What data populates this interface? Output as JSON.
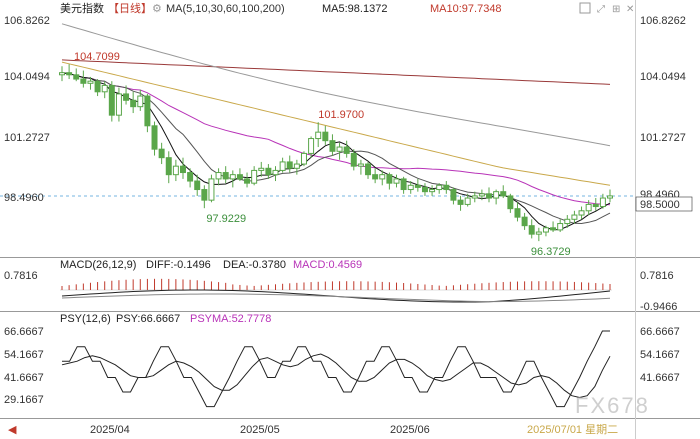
{
  "header": {
    "symbol": "美元指数",
    "period": "【日线】",
    "ma_title": "MA(5,10,30,60,100,200)",
    "ma5": "MA5:98.1372",
    "ma10": "MA10:97.7348"
  },
  "colors": {
    "background": "#ffffff",
    "up": "#5aa64a",
    "down": "#5aa64a",
    "ma5": "#111111",
    "ma10": "#555555",
    "ma30": "#b833b8",
    "ma60": "#c9a84a",
    "ma100": "#999999",
    "ma200": "#9a3a3a",
    "axis_text": "#333333",
    "label_red": "#c0392b",
    "label_green": "#3c8f3c",
    "last_price_bg": "#ffffff",
    "grid": "#e8e8e8"
  },
  "chart_data": [
    {
      "type": "candlestick",
      "name": "price",
      "y_ticks": [
        "106.8262",
        "104.0494",
        "101.2727",
        "98.4960"
      ],
      "ylim": [
        95.5,
        107.0
      ],
      "x_ticks": [
        "2025/04",
        "2025/05",
        "2025/06"
      ],
      "last_price": "98.5000",
      "current_line": "98.4960",
      "annotations": [
        {
          "text": "104.7099",
          "value": 104.7099,
          "color": "red"
        },
        {
          "text": "101.9700",
          "value": 101.97,
          "color": "red"
        },
        {
          "text": "97.9229",
          "value": 97.9229,
          "color": "green"
        },
        {
          "text": "96.3729",
          "value": 96.3729,
          "color": "green"
        }
      ],
      "ohlc": [
        [
          104.2,
          104.6,
          103.9,
          104.3
        ],
        [
          104.3,
          104.7,
          104.0,
          104.2
        ],
        [
          104.2,
          104.5,
          103.9,
          104.0
        ],
        [
          104.0,
          104.4,
          103.6,
          103.8
        ],
        [
          103.8,
          104.1,
          103.5,
          103.9
        ],
        [
          103.9,
          104.0,
          103.2,
          103.4
        ],
        [
          103.4,
          103.9,
          103.1,
          103.7
        ],
        [
          103.7,
          103.9,
          102.0,
          102.3
        ],
        [
          102.3,
          103.6,
          102.0,
          103.3
        ],
        [
          103.3,
          103.7,
          102.8,
          103.0
        ],
        [
          103.0,
          103.4,
          102.4,
          102.7
        ],
        [
          102.7,
          103.5,
          102.5,
          103.2
        ],
        [
          103.2,
          103.3,
          101.5,
          101.8
        ],
        [
          101.8,
          102.0,
          100.4,
          100.7
        ],
        [
          100.7,
          101.0,
          100.0,
          100.3
        ],
        [
          100.3,
          100.6,
          99.1,
          99.5
        ],
        [
          99.5,
          100.2,
          99.2,
          99.9
        ],
        [
          99.9,
          100.3,
          99.3,
          99.6
        ],
        [
          99.6,
          99.8,
          98.9,
          99.2
        ],
        [
          99.2,
          99.5,
          98.5,
          98.8
        ],
        [
          98.8,
          99.0,
          97.9229,
          98.3
        ],
        [
          98.3,
          99.5,
          98.2,
          99.3
        ],
        [
          99.3,
          99.8,
          99.0,
          99.6
        ],
        [
          99.6,
          99.9,
          99.1,
          99.3
        ],
        [
          99.3,
          99.7,
          98.9,
          99.5
        ],
        [
          99.5,
          99.8,
          99.2,
          99.3
        ],
        [
          99.3,
          99.6,
          98.9,
          99.1
        ],
        [
          99.1,
          99.9,
          99.0,
          99.7
        ],
        [
          99.7,
          100.1,
          99.4,
          99.8
        ],
        [
          99.8,
          100.0,
          99.3,
          99.5
        ],
        [
          99.5,
          99.9,
          99.2,
          99.7
        ],
        [
          99.7,
          100.3,
          99.6,
          100.1
        ],
        [
          100.1,
          100.4,
          99.6,
          99.8
        ],
        [
          99.8,
          100.2,
          99.5,
          100.0
        ],
        [
          100.0,
          100.6,
          99.9,
          100.5
        ],
        [
          100.5,
          101.3,
          100.3,
          101.2
        ],
        [
          101.2,
          101.97,
          100.8,
          101.5
        ],
        [
          101.5,
          101.8,
          100.9,
          101.1
        ],
        [
          101.1,
          101.4,
          100.4,
          100.6
        ],
        [
          100.6,
          101.0,
          100.2,
          100.8
        ],
        [
          100.8,
          101.1,
          100.3,
          100.5
        ],
        [
          100.5,
          100.7,
          99.7,
          99.9
        ],
        [
          99.9,
          100.2,
          99.5,
          100.0
        ],
        [
          100.0,
          100.1,
          99.3,
          99.5
        ],
        [
          99.5,
          99.8,
          99.1,
          99.3
        ],
        [
          99.3,
          99.7,
          99.0,
          99.5
        ],
        [
          99.5,
          99.6,
          98.8,
          99.1
        ],
        [
          99.1,
          99.5,
          98.9,
          99.3
        ],
        [
          99.3,
          99.4,
          98.6,
          98.8
        ],
        [
          98.8,
          99.2,
          98.6,
          99.0
        ],
        [
          99.0,
          99.3,
          98.7,
          98.9
        ],
        [
          98.9,
          99.1,
          98.5,
          98.7
        ],
        [
          98.7,
          99.0,
          98.5,
          98.8
        ],
        [
          98.8,
          99.1,
          98.6,
          99.0
        ],
        [
          99.0,
          99.2,
          98.6,
          98.8
        ],
        [
          98.8,
          98.9,
          98.1,
          98.3
        ],
        [
          98.3,
          98.5,
          97.8,
          98.1
        ],
        [
          98.1,
          98.6,
          98.0,
          98.4
        ],
        [
          98.4,
          98.7,
          98.2,
          98.5
        ],
        [
          98.5,
          98.8,
          98.3,
          98.6
        ],
        [
          98.6,
          98.9,
          98.2,
          98.4
        ],
        [
          98.4,
          98.8,
          98.1,
          98.7
        ],
        [
          98.7,
          99.0,
          98.4,
          98.5
        ],
        [
          98.5,
          98.6,
          97.7,
          97.9
        ],
        [
          97.9,
          98.2,
          97.3,
          97.5
        ],
        [
          97.5,
          97.7,
          96.9,
          97.1
        ],
        [
          97.1,
          97.4,
          96.5,
          96.7
        ],
        [
          96.7,
          97.0,
          96.3729,
          96.8
        ],
        [
          96.8,
          97.1,
          96.6,
          97.0
        ],
        [
          97.0,
          97.3,
          96.8,
          96.9
        ],
        [
          96.9,
          97.4,
          96.8,
          97.2
        ],
        [
          97.2,
          97.6,
          97.0,
          97.4
        ],
        [
          97.4,
          97.8,
          97.2,
          97.6
        ],
        [
          97.6,
          98.0,
          97.4,
          97.8
        ],
        [
          97.8,
          98.3,
          97.6,
          98.1
        ],
        [
          98.1,
          98.4,
          97.8,
          98.0
        ],
        [
          98.0,
          98.6,
          97.9,
          98.4
        ],
        [
          98.4,
          98.8,
          98.2,
          98.5
        ]
      ],
      "ma_lines": {
        "ma5_end": 98.1372,
        "ma10_end": 97.7348
      }
    },
    {
      "type": "macd",
      "title": "MACD(26,12,9)",
      "diff": "DIFF:-0.1496",
      "dea": "DEA:-0.3780",
      "macd": "MACD:0.4569",
      "y_ticks": [
        "0.7816",
        "-0.9466"
      ],
      "ylim": [
        -0.9466,
        0.7816
      ]
    },
    {
      "type": "line",
      "title": "PSY(12,6)",
      "psy": "PSY:66.6667",
      "psyma": "PSYMA:52.7778",
      "y_ticks": [
        "66.6667",
        "54.1667",
        "41.6667",
        "29.1667"
      ],
      "ylim": [
        20,
        70
      ],
      "date_label": "2025/07/01 星期二",
      "series": [
        {
          "name": "PSY",
          "values": [
            50,
            50,
            58,
            58,
            50,
            50,
            41,
            41,
            33,
            33,
            41,
            41,
            50,
            58,
            58,
            50,
            41,
            41,
            33,
            25,
            25,
            33,
            41,
            50,
            58,
            58,
            50,
            41,
            41,
            50,
            50,
            58,
            58,
            50,
            50,
            41,
            41,
            33,
            33,
            41,
            50,
            50,
            58,
            58,
            50,
            41,
            41,
            33,
            33,
            41,
            41,
            50,
            58,
            58,
            50,
            41,
            41,
            41,
            33,
            33,
            41,
            50,
            50,
            41,
            33,
            25,
            25,
            33,
            41,
            50,
            58,
            66.6667,
            66.6667
          ]
        },
        {
          "name": "PSYMA",
          "values": [
            48,
            49,
            50,
            52,
            53,
            52,
            50,
            48,
            45,
            42,
            41,
            41,
            42,
            45,
            48,
            50,
            49,
            47,
            44,
            40,
            36,
            34,
            34,
            37,
            42,
            47,
            51,
            52,
            50,
            48,
            47,
            48,
            51,
            53,
            54,
            52,
            49,
            45,
            41,
            39,
            39,
            41,
            45,
            49,
            51,
            51,
            49,
            46,
            42,
            40,
            39,
            40,
            43,
            46,
            49,
            49,
            47,
            44,
            41,
            38,
            37,
            38,
            41,
            42,
            41,
            38,
            34,
            31,
            30,
            31,
            36,
            45,
            52.7778
          ]
        }
      ]
    }
  ],
  "watermark": "FX678",
  "corner_icons": [
    "chart-type-icon",
    "settings-icon",
    "fullscreen-icon",
    "close-icon"
  ]
}
